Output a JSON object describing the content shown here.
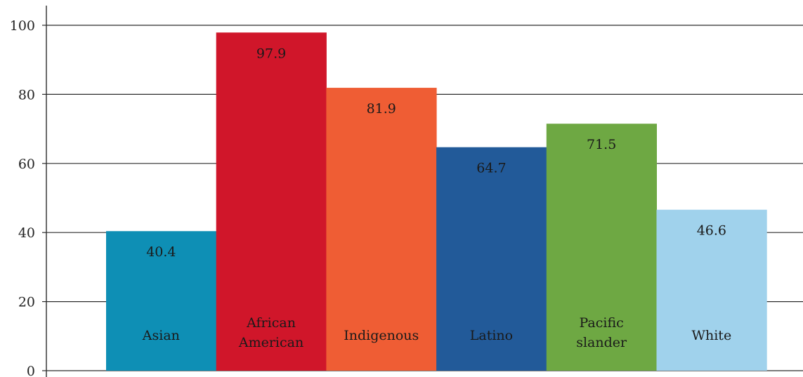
{
  "chart_data": {
    "type": "bar",
    "title": "",
    "xlabel": "",
    "ylabel": "",
    "ylim": [
      0,
      100
    ],
    "yticks": [
      0,
      20,
      40,
      60,
      80,
      100
    ],
    "grid": "horizontal",
    "categories": [
      [
        "Asian"
      ],
      [
        "African",
        "American"
      ],
      [
        "Indigenous"
      ],
      [
        "Latino"
      ],
      [
        "Pacific",
        "slander"
      ],
      [
        "White"
      ]
    ],
    "values": [
      40.4,
      97.9,
      81.9,
      64.7,
      71.5,
      46.6
    ],
    "value_labels": [
      "40.4",
      "97.9",
      "81.9",
      "64.7",
      "71.5",
      "46.6"
    ],
    "colors": [
      "#0e8fb5",
      "#d0162a",
      "#ef5d34",
      "#225a99",
      "#6ea843",
      "#a0d2ec"
    ],
    "label_colors": [
      "#1a1a1a",
      "#1a1a1a",
      "#1a1a1a",
      "#e8eef6",
      "#1a1a1a",
      "#1a1a1a"
    ]
  }
}
